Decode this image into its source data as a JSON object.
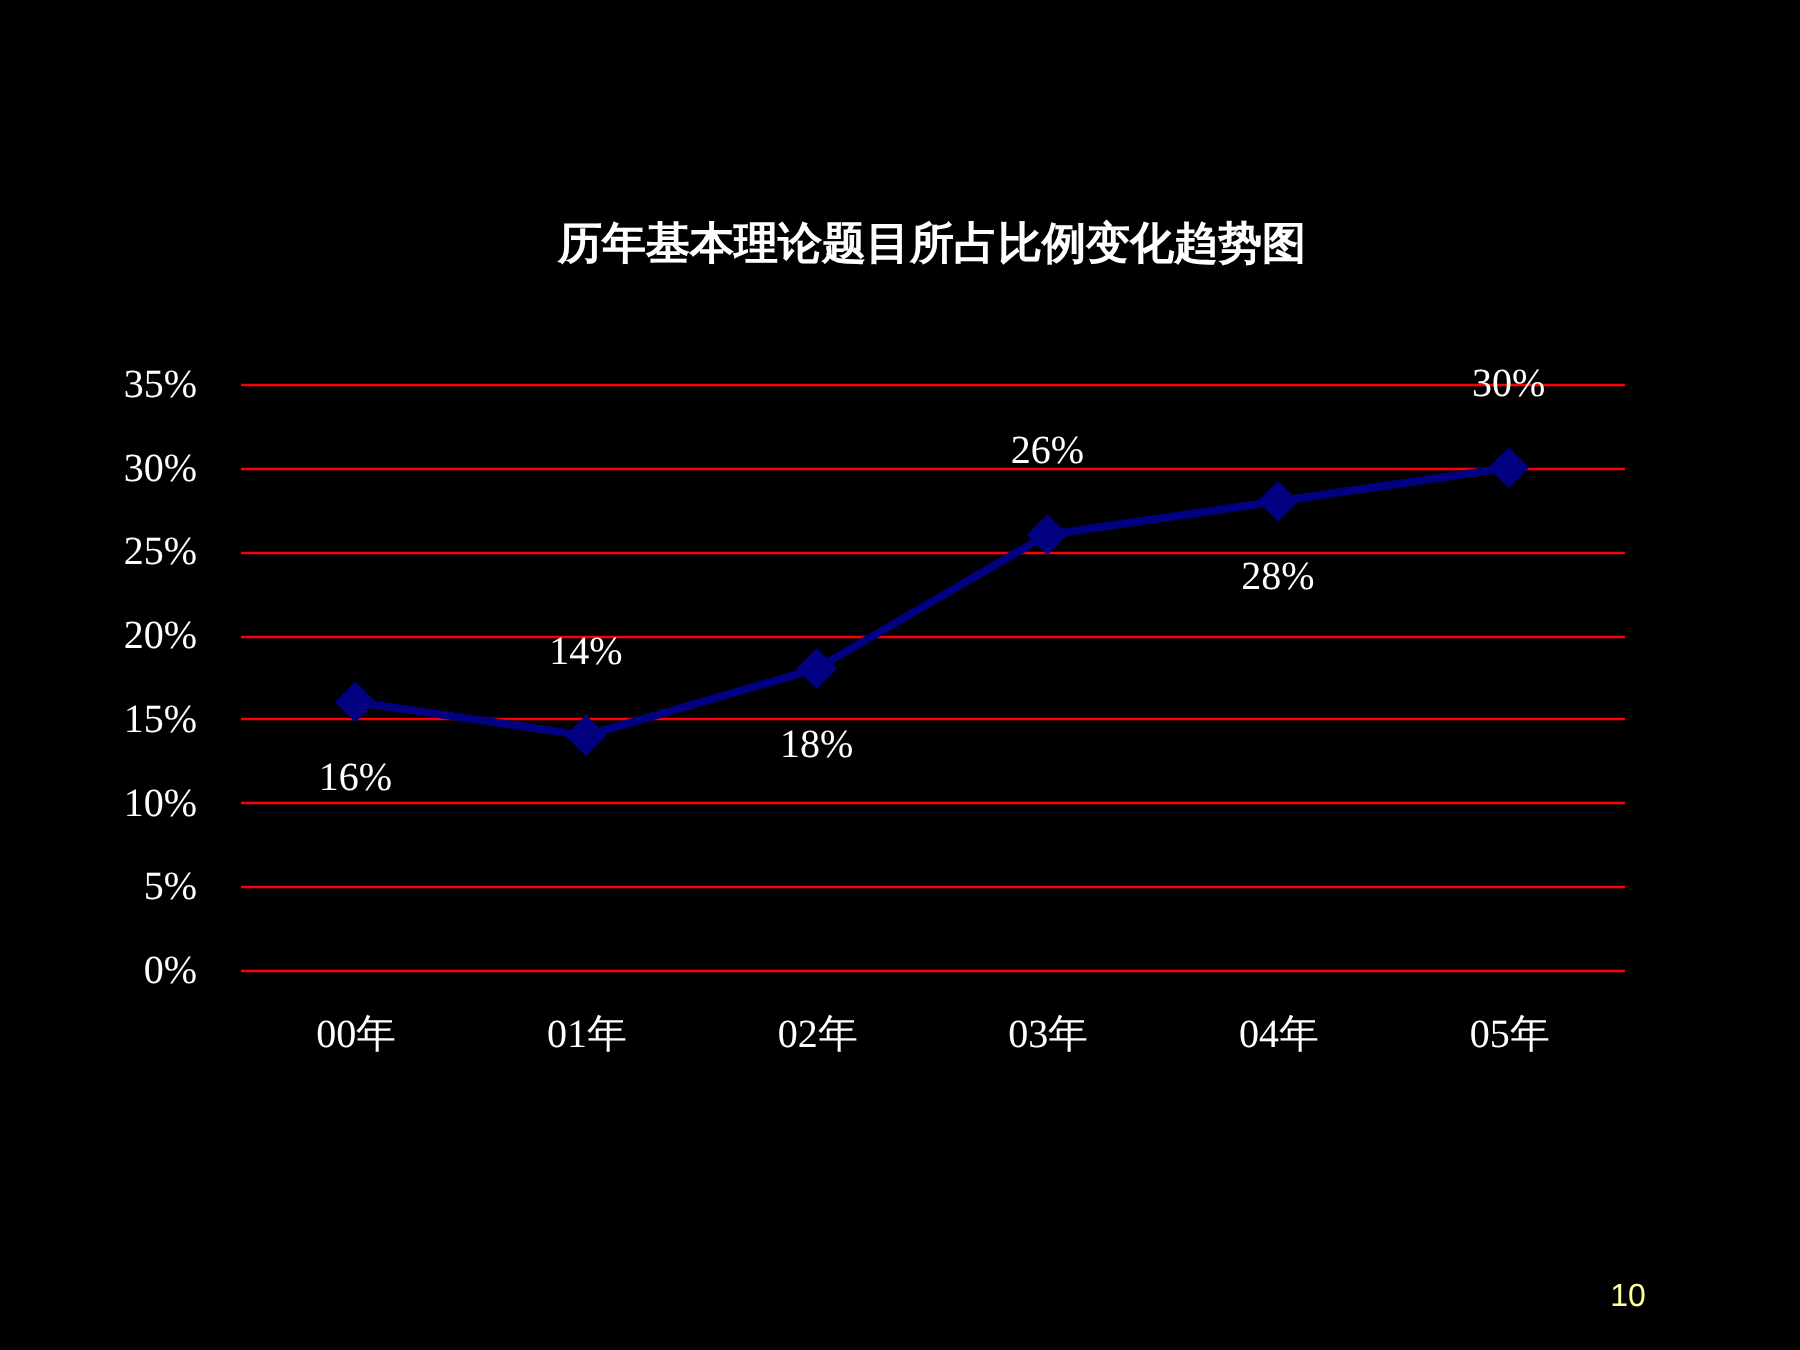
{
  "chart_data": {
    "type": "line",
    "title": "历年基本理论题目所占比例变化趋势图",
    "categories": [
      "00年",
      "01年",
      "02年",
      "03年",
      "04年",
      "05年"
    ],
    "series": [
      {
        "color": "#000080",
        "values": [
          16,
          14,
          18,
          26,
          28,
          30
        ]
      }
    ],
    "value_labels": [
      "16%",
      "14%",
      "18%",
      "26%",
      "28%",
      "30%"
    ],
    "ylim": [
      0,
      35
    ],
    "yticks": [
      {
        "value": 0,
        "label": "0%"
      },
      {
        "value": 5,
        "label": "5%"
      },
      {
        "value": 10,
        "label": "10%"
      },
      {
        "value": 15,
        "label": "15%"
      },
      {
        "value": 20,
        "label": "20%"
      },
      {
        "value": 25,
        "label": "25%"
      },
      {
        "value": 30,
        "label": "30%"
      },
      {
        "value": 35,
        "label": "35%"
      }
    ],
    "grid": "y",
    "marker": "diamond",
    "line_style": "solid",
    "annotations": [
      "10"
    ]
  }
}
